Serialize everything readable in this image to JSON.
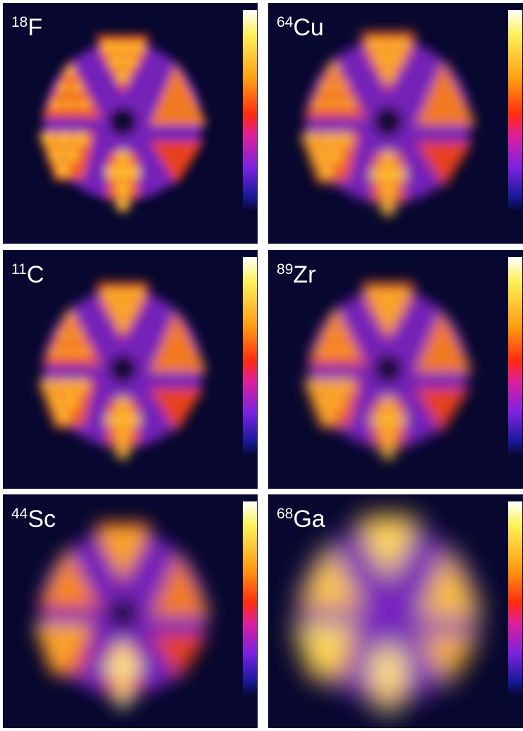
{
  "panels": [
    {
      "mass": "18",
      "element": "F"
    },
    {
      "mass": "64",
      "element": "Cu"
    },
    {
      "mass": "11",
      "element": "C"
    },
    {
      "mass": "89",
      "element": "Zr"
    },
    {
      "mass": "44",
      "element": "Sc"
    },
    {
      "mass": "68",
      "element": "Ga"
    }
  ]
}
